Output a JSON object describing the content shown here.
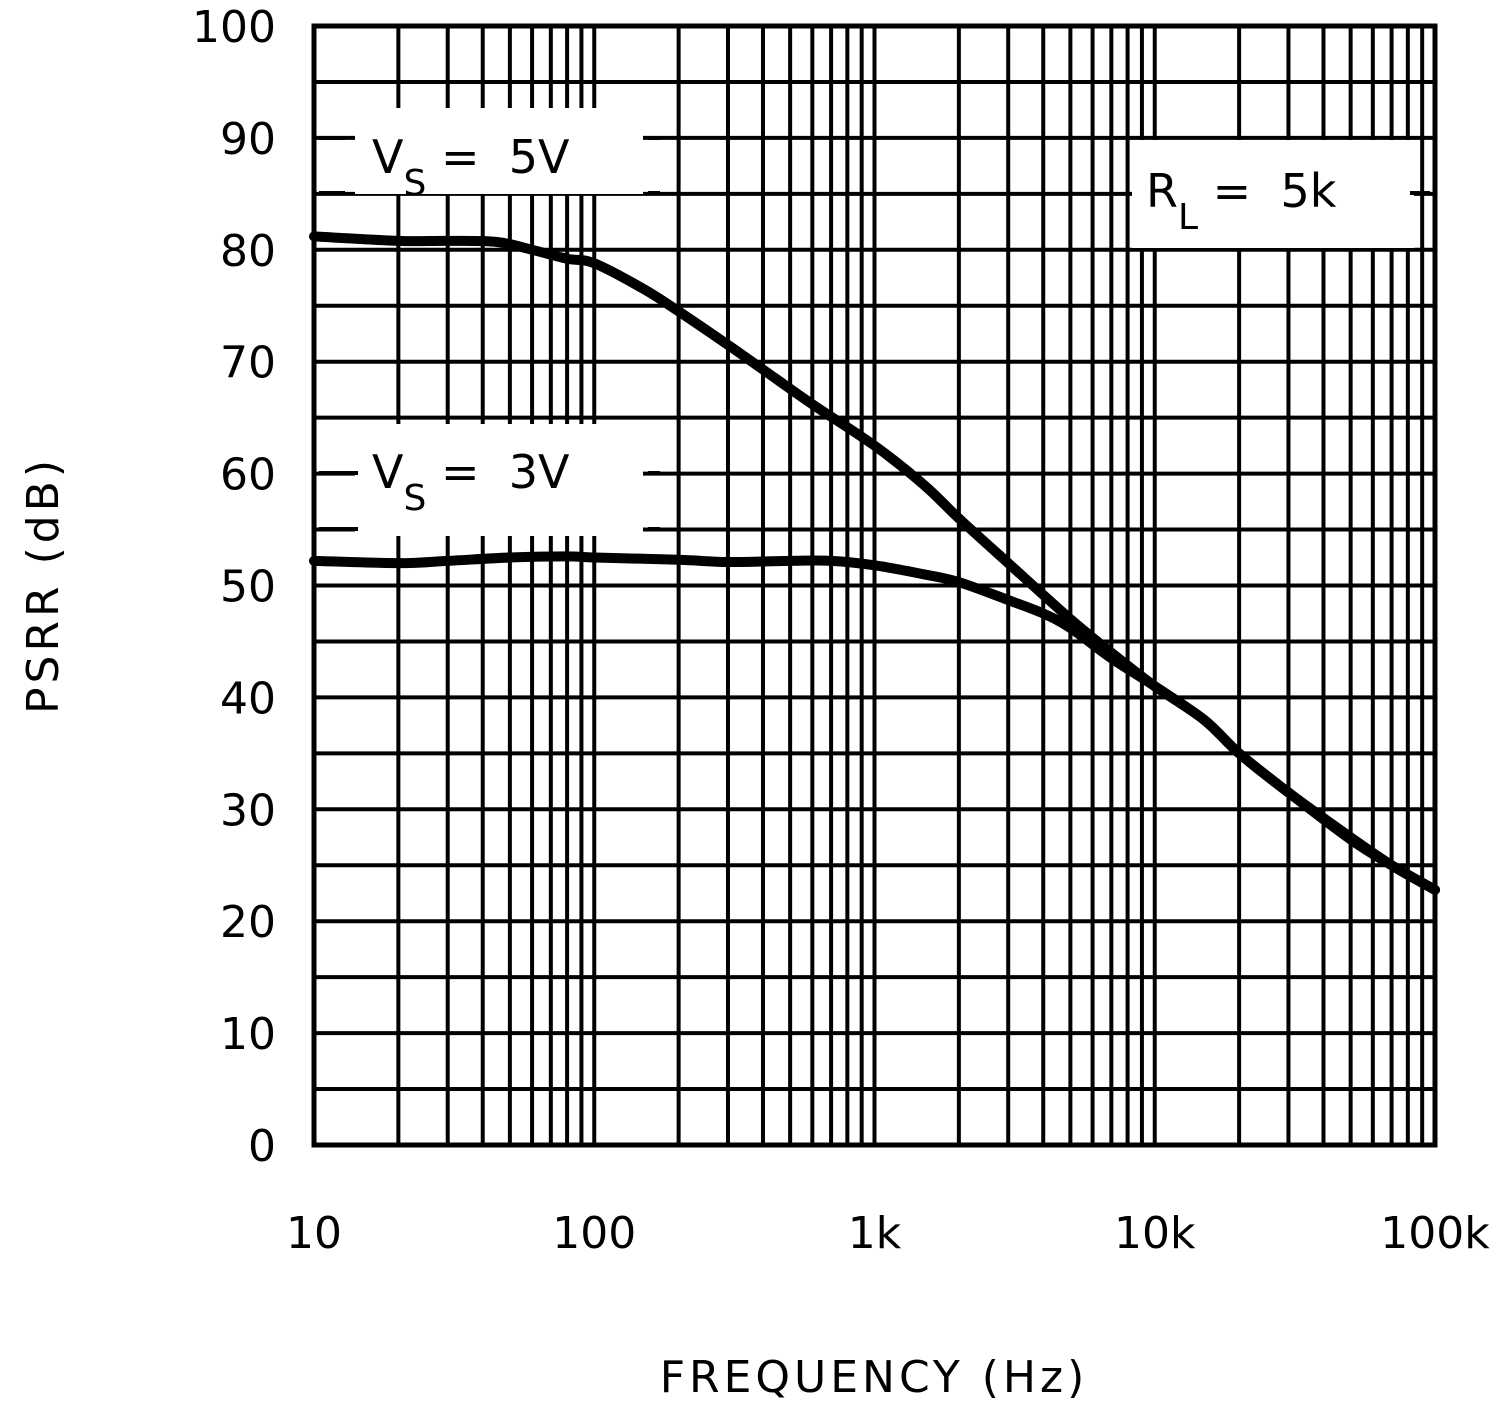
{
  "chart_data": {
    "type": "line",
    "title": "",
    "xlabel": "FREQUENCY (Hz)",
    "ylabel": "PSRR (dB)",
    "xscale": "log",
    "xlim": [
      10,
      100000
    ],
    "ylim": [
      0,
      100
    ],
    "grid": true,
    "x_tick_labels": [
      "10",
      "100",
      "1k",
      "10k",
      "100k"
    ],
    "x_tick_values": [
      10,
      100,
      1000,
      10000,
      100000
    ],
    "y_tick_labels": [
      "0",
      "10",
      "20",
      "30",
      "40",
      "50",
      "60",
      "70",
      "80",
      "90",
      "100"
    ],
    "y_minor_step": 5,
    "annotations": [
      {
        "text": "V",
        "sub": "S",
        "rest": "= 5V",
        "near_series": "VS = 5V"
      },
      {
        "text": "V",
        "sub": "S",
        "rest": "= 3V",
        "near_series": "VS = 3V"
      },
      {
        "text": "R",
        "sub": "L",
        "rest": "= 5k",
        "note": "condition"
      }
    ],
    "series": [
      {
        "name": "VS = 5V",
        "x": [
          10,
          20,
          30,
          45,
          60,
          80,
          100,
          150,
          200,
          300,
          400,
          600,
          1000,
          1500,
          2000,
          3000,
          5000,
          7000,
          10000,
          15000,
          20000,
          30000,
          50000,
          70000,
          100000
        ],
        "y": [
          81.2,
          80.8,
          80.8,
          80.7,
          80.0,
          79.2,
          78.8,
          76.5,
          74.5,
          71.5,
          69.3,
          66.2,
          62.5,
          59.0,
          56.0,
          52.0,
          47.0,
          44.0,
          41.0,
          38.0,
          35.0,
          31.5,
          27.5,
          25.0,
          22.8
        ]
      },
      {
        "name": "VS = 3V",
        "x": [
          10,
          20,
          30,
          50,
          80,
          100,
          200,
          300,
          500,
          700,
          1000,
          1500,
          2000,
          3000,
          4000,
          5000,
          7000,
          10000,
          15000,
          20000,
          30000,
          50000,
          70000,
          100000
        ],
        "y": [
          52.2,
          52.0,
          52.2,
          52.5,
          52.6,
          52.5,
          52.3,
          52.1,
          52.2,
          52.2,
          51.8,
          51.0,
          50.3,
          48.7,
          47.5,
          46.2,
          43.5,
          41.0,
          38.0,
          35.0,
          31.5,
          27.3,
          25.0,
          22.8
        ]
      }
    ]
  },
  "labels": {
    "xlabel": "FREQUENCY (Hz)",
    "ylabel": "PSRR (dB)",
    "vs5_main": "V",
    "vs5_sub": "S",
    "vs5_rest": " =  5V",
    "vs3_main": "V",
    "vs3_sub": "S",
    "vs3_rest": " =  3V",
    "rl_main": "R",
    "rl_sub": "L",
    "rl_rest": " =  5k"
  },
  "colors": {
    "ink": "#000000",
    "background": "#ffffff"
  }
}
